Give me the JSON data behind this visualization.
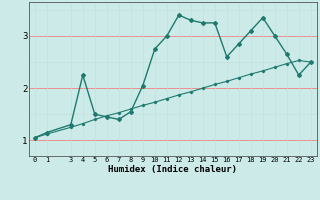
{
  "xlabel": "Humidex (Indice chaleur)",
  "x": [
    0,
    1,
    3,
    4,
    5,
    6,
    7,
    8,
    9,
    10,
    11,
    12,
    13,
    14,
    15,
    16,
    17,
    18,
    19,
    20,
    21,
    22,
    23
  ],
  "y_main": [
    1.05,
    1.15,
    1.3,
    2.25,
    1.5,
    1.45,
    1.4,
    1.55,
    2.05,
    2.75,
    3.0,
    3.4,
    3.3,
    3.25,
    3.25,
    2.6,
    2.85,
    3.1,
    3.35,
    3.0,
    2.65,
    2.25,
    2.5
  ],
  "y_trend": [
    1.05,
    1.12,
    1.25,
    1.32,
    1.4,
    1.47,
    1.53,
    1.6,
    1.67,
    1.73,
    1.8,
    1.87,
    1.93,
    2.0,
    2.07,
    2.13,
    2.2,
    2.27,
    2.33,
    2.4,
    2.47,
    2.53,
    2.5
  ],
  "bg_color": "#cceae8",
  "line_color": "#1e7a6e",
  "grid_major_color": "#f08080",
  "grid_minor_color": "#c5e0de",
  "ylim": [
    0.7,
    3.65
  ],
  "yticks": [
    1,
    2,
    3
  ],
  "xlim": [
    -0.5,
    23.5
  ]
}
